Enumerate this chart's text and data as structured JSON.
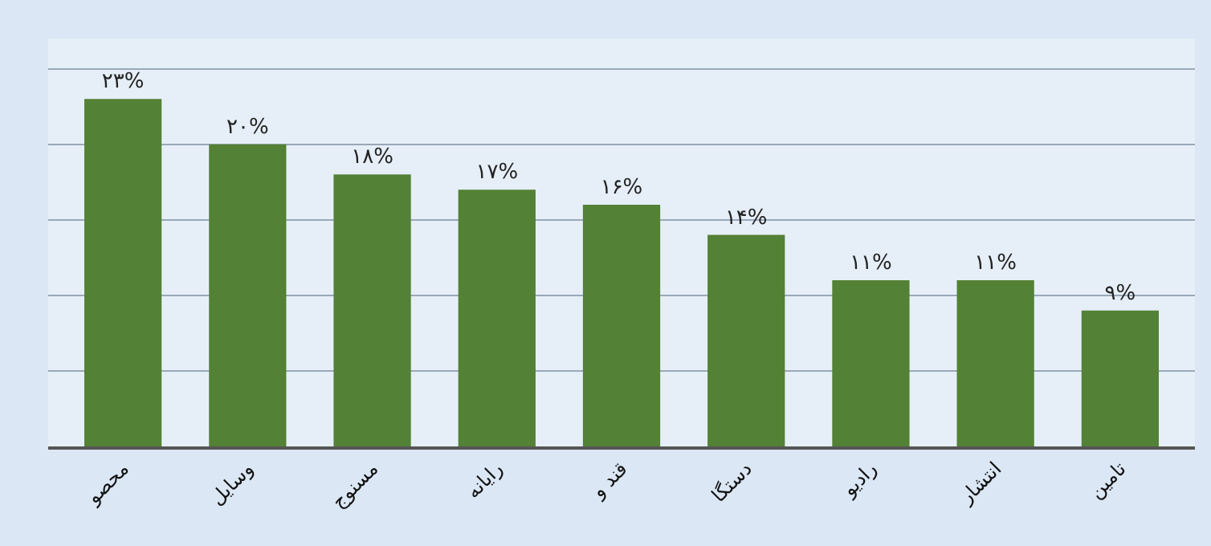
{
  "chart_data": {
    "type": "bar",
    "categories": [
      "محصو",
      "وسایل",
      "مسنوج",
      "رایانه",
      "قند و",
      "دستگا",
      "رادیو",
      "انتشار",
      "تامین"
    ],
    "values": [
      23,
      20,
      18,
      17,
      16,
      14,
      11,
      11,
      9
    ],
    "value_labels": [
      "۲۳%",
      "۲۰%",
      "۱۸%",
      "۱۷%",
      "۱۶%",
      "۱۴%",
      "۱۱%",
      "۱۱%",
      "۹%"
    ],
    "color": "#538135",
    "ylim": [
      0,
      27
    ],
    "yticks": [
      {
        "value": 0,
        "label": null
      },
      {
        "value": 5,
        "label": null
      },
      {
        "value": 10,
        "label": null
      },
      {
        "value": 15,
        "label": null
      },
      {
        "value": 20,
        "label": null
      },
      {
        "value": 25,
        "label": null
      }
    ],
    "grid": "y",
    "tick_labels": "x"
  }
}
